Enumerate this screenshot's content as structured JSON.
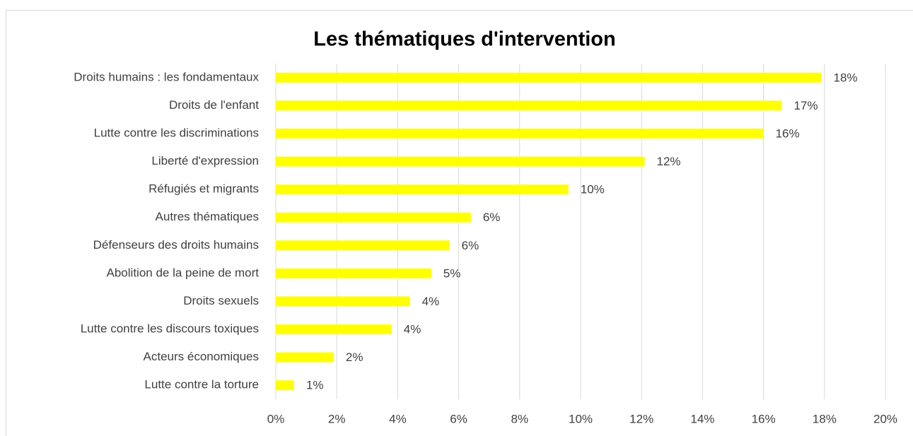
{
  "chart_data": {
    "type": "bar",
    "orientation": "horizontal",
    "title": "Les thématiques d'intervention",
    "categories": [
      "Droits humains : les fondamentaux",
      "Droits de l'enfant",
      "Lutte contre les discriminations",
      "Liberté d'expression",
      "Réfugiés et migrants",
      "Autres thématiques",
      "Défenseurs des droits humains",
      "Abolition de la peine de mort",
      "Droits sexuels",
      "Lutte contre les discours toxiques",
      "Acteurs économiques",
      "Lutte contre la torture"
    ],
    "values": [
      17.9,
      16.6,
      16.0,
      12.1,
      9.6,
      6.4,
      5.7,
      5.1,
      4.4,
      3.8,
      1.9,
      0.6
    ],
    "value_labels": [
      "18%",
      "17%",
      "16%",
      "12%",
      "10%",
      "6%",
      "6%",
      "5%",
      "4%",
      "4%",
      "2%",
      "1%"
    ],
    "color": "#ffff00",
    "xlim": [
      0,
      20
    ],
    "xticks": [
      {
        "value": 0,
        "label": "0%"
      },
      {
        "value": 2,
        "label": "2%"
      },
      {
        "value": 4,
        "label": "4%"
      },
      {
        "value": 6,
        "label": "6%"
      },
      {
        "value": 8,
        "label": "8%"
      },
      {
        "value": 10,
        "label": "10%"
      },
      {
        "value": 12,
        "label": "12%"
      },
      {
        "value": 14,
        "label": "14%"
      },
      {
        "value": 16,
        "label": "16%"
      },
      {
        "value": 18,
        "label": "18%"
      },
      {
        "value": 20,
        "label": "20%"
      }
    ],
    "grid": true
  }
}
